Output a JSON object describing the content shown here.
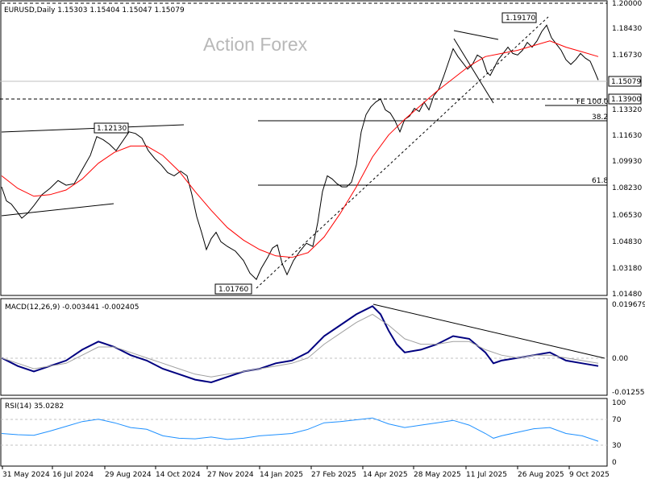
{
  "chart_data": [
    {
      "type": "candlestick",
      "name": "main",
      "header": "EURUSD,Daily  1.15303 1.15404 1.15047 1.15079",
      "watermark": "Action Forex",
      "ylim": [
        1.0,
        2.0
      ],
      "y_ticks": [
        "1.20000",
        "1.18430",
        "1.16730",
        "1.15079",
        "1.13900",
        "1.13320",
        "1.11630",
        "1.09930",
        "1.08230",
        "1.06530",
        "1.04830",
        "1.03180",
        "1.01480"
      ],
      "current_price": "1.15079",
      "level_1390": "1.13900",
      "annotations": {
        "high_label": "1.19170",
        "low_label": "1.01760",
        "mid_high_label": "1.12130"
      },
      "fib_labels": {
        "fe": "FE 100.0",
        "f382": "38.2",
        "f618": "61.8"
      },
      "x_ticks": [
        "31 May 2024",
        "16 Jul 2024",
        "29 Aug 2024",
        "14 Oct 2024",
        "27 Nov 2024",
        "14 Jan 2025",
        "27 Feb 2025",
        "14 Apr 2025",
        "28 May 2025",
        "11 Jul 2025",
        "26 Aug 2025",
        "9 Oct 2025"
      ],
      "price_path": [
        [
          0,
          1.083
        ],
        [
          6,
          1.074
        ],
        [
          12,
          1.072
        ],
        [
          18,
          1.068
        ],
        [
          25,
          1.063
        ],
        [
          32,
          1.066
        ],
        [
          40,
          1.071
        ],
        [
          50,
          1.078
        ],
        [
          60,
          1.082
        ],
        [
          70,
          1.087
        ],
        [
          80,
          1.084
        ],
        [
          90,
          1.085
        ],
        [
          100,
          1.094
        ],
        [
          110,
          1.103
        ],
        [
          118,
          1.115
        ],
        [
          126,
          1.113
        ],
        [
          134,
          1.11
        ],
        [
          142,
          1.106
        ],
        [
          150,
          1.112
        ],
        [
          158,
          1.118
        ],
        [
          166,
          1.117
        ],
        [
          174,
          1.114
        ],
        [
          182,
          1.106
        ],
        [
          190,
          1.101
        ],
        [
          198,
          1.097
        ],
        [
          206,
          1.092
        ],
        [
          214,
          1.09
        ],
        [
          222,
          1.093
        ],
        [
          230,
          1.09
        ],
        [
          236,
          1.078
        ],
        [
          242,
          1.064
        ],
        [
          248,
          1.054
        ],
        [
          254,
          1.043
        ],
        [
          260,
          1.05
        ],
        [
          266,
          1.054
        ],
        [
          272,
          1.048
        ],
        [
          280,
          1.045
        ],
        [
          290,
          1.042
        ],
        [
          300,
          1.036
        ],
        [
          308,
          1.028
        ],
        [
          316,
          1.024
        ],
        [
          322,
          1.031
        ],
        [
          330,
          1.038
        ],
        [
          336,
          1.044
        ],
        [
          342,
          1.046
        ],
        [
          348,
          1.034
        ],
        [
          354,
          1.027
        ],
        [
          362,
          1.036
        ],
        [
          370,
          1.042
        ],
        [
          378,
          1.047
        ],
        [
          386,
          1.045
        ],
        [
          392,
          1.06
        ],
        [
          398,
          1.08
        ],
        [
          404,
          1.09
        ],
        [
          410,
          1.088
        ],
        [
          416,
          1.085
        ],
        [
          422,
          1.083
        ],
        [
          428,
          1.083
        ],
        [
          434,
          1.086
        ],
        [
          440,
          1.097
        ],
        [
          446,
          1.118
        ],
        [
          452,
          1.129
        ],
        [
          458,
          1.134
        ],
        [
          464,
          1.137
        ],
        [
          470,
          1.139
        ],
        [
          476,
          1.132
        ],
        [
          482,
          1.13
        ],
        [
          488,
          1.125
        ],
        [
          494,
          1.118
        ],
        [
          500,
          1.126
        ],
        [
          506,
          1.128
        ],
        [
          512,
          1.133
        ],
        [
          518,
          1.131
        ],
        [
          524,
          1.137
        ],
        [
          530,
          1.132
        ],
        [
          536,
          1.141
        ],
        [
          542,
          1.145
        ],
        [
          548,
          1.153
        ],
        [
          554,
          1.162
        ],
        [
          560,
          1.171
        ],
        [
          566,
          1.166
        ],
        [
          572,
          1.162
        ],
        [
          578,
          1.158
        ],
        [
          584,
          1.161
        ],
        [
          590,
          1.167
        ],
        [
          596,
          1.165
        ],
        [
          602,
          1.156
        ],
        [
          606,
          1.154
        ],
        [
          610,
          1.158
        ],
        [
          616,
          1.164
        ],
        [
          622,
          1.168
        ],
        [
          628,
          1.172
        ],
        [
          634,
          1.168
        ],
        [
          640,
          1.167
        ],
        [
          646,
          1.17
        ],
        [
          652,
          1.175
        ],
        [
          658,
          1.172
        ],
        [
          664,
          1.176
        ],
        [
          670,
          1.182
        ],
        [
          676,
          1.186
        ],
        [
          682,
          1.178
        ],
        [
          688,
          1.174
        ],
        [
          694,
          1.17
        ],
        [
          700,
          1.164
        ],
        [
          706,
          1.161
        ],
        [
          712,
          1.164
        ],
        [
          718,
          1.168
        ],
        [
          724,
          1.165
        ],
        [
          730,
          1.163
        ],
        [
          736,
          1.156
        ],
        [
          740,
          1.151
        ]
      ],
      "ma_path": [
        [
          0,
          1.09
        ],
        [
          20,
          1.082
        ],
        [
          40,
          1.077
        ],
        [
          60,
          1.078
        ],
        [
          80,
          1.081
        ],
        [
          100,
          1.088
        ],
        [
          120,
          1.098
        ],
        [
          140,
          1.105
        ],
        [
          160,
          1.109
        ],
        [
          180,
          1.109
        ],
        [
          200,
          1.103
        ],
        [
          220,
          1.093
        ],
        [
          240,
          1.08
        ],
        [
          260,
          1.068
        ],
        [
          280,
          1.057
        ],
        [
          300,
          1.049
        ],
        [
          320,
          1.043
        ],
        [
          340,
          1.039
        ],
        [
          360,
          1.038
        ],
        [
          380,
          1.041
        ],
        [
          400,
          1.051
        ],
        [
          420,
          1.066
        ],
        [
          440,
          1.083
        ],
        [
          460,
          1.102
        ],
        [
          480,
          1.116
        ],
        [
          500,
          1.126
        ],
        [
          520,
          1.135
        ],
        [
          540,
          1.144
        ],
        [
          560,
          1.152
        ],
        [
          580,
          1.16
        ],
        [
          600,
          1.166
        ],
        [
          620,
          1.168
        ],
        [
          640,
          1.17
        ],
        [
          660,
          1.173
        ],
        [
          680,
          1.176
        ],
        [
          700,
          1.172
        ],
        [
          720,
          1.169
        ],
        [
          740,
          1.166
        ]
      ]
    },
    {
      "type": "line",
      "name": "macd",
      "label": "MACD(12,26,9) -0.003441 -0.002405",
      "y_ticks": [
        "0.019679",
        "0.00",
        "-0.012552"
      ],
      "ylim": [
        -0.0126,
        0.0197
      ],
      "series": [
        {
          "points": [
            [
              0,
              0.0
            ],
            [
              20,
              -0.003
            ],
            [
              40,
              -0.005
            ],
            [
              60,
              -0.003
            ],
            [
              80,
              -0.001
            ],
            [
              100,
              0.003
            ],
            [
              120,
              0.006
            ],
            [
              140,
              0.004
            ],
            [
              160,
              0.001
            ],
            [
              180,
              -0.001
            ],
            [
              200,
              -0.004
            ],
            [
              220,
              -0.006
            ],
            [
              240,
              -0.008
            ],
            [
              260,
              -0.009
            ],
            [
              280,
              -0.007
            ],
            [
              300,
              -0.005
            ],
            [
              320,
              -0.004
            ],
            [
              340,
              -0.002
            ],
            [
              360,
              -0.001
            ],
            [
              380,
              0.002
            ],
            [
              400,
              0.008
            ],
            [
              420,
              0.012
            ],
            [
              440,
              0.016
            ],
            [
              460,
              0.019
            ],
            [
              470,
              0.016
            ],
            [
              480,
              0.01
            ],
            [
              490,
              0.005
            ],
            [
              500,
              0.002
            ],
            [
              520,
              0.003
            ],
            [
              540,
              0.005
            ],
            [
              560,
              0.008
            ],
            [
              580,
              0.007
            ],
            [
              600,
              0.002
            ],
            [
              610,
              -0.002
            ],
            [
              620,
              -0.001
            ],
            [
              640,
              0.0
            ],
            [
              660,
              0.001
            ],
            [
              680,
              0.002
            ],
            [
              700,
              -0.001
            ],
            [
              720,
              -0.002
            ],
            [
              740,
              -0.003
            ]
          ]
        },
        {
          "points": [
            [
              0,
              0.0
            ],
            [
              20,
              -0.002
            ],
            [
              40,
              -0.004
            ],
            [
              60,
              -0.003
            ],
            [
              80,
              -0.002
            ],
            [
              100,
              0.001
            ],
            [
              120,
              0.004
            ],
            [
              140,
              0.004
            ],
            [
              160,
              0.002
            ],
            [
              180,
              0.0
            ],
            [
              200,
              -0.002
            ],
            [
              220,
              -0.004
            ],
            [
              240,
              -0.006
            ],
            [
              260,
              -0.007
            ],
            [
              280,
              -0.006
            ],
            [
              300,
              -0.005
            ],
            [
              320,
              -0.004
            ],
            [
              340,
              -0.003
            ],
            [
              360,
              -0.002
            ],
            [
              380,
              0.0
            ],
            [
              400,
              0.005
            ],
            [
              420,
              0.009
            ],
            [
              440,
              0.013
            ],
            [
              460,
              0.016
            ],
            [
              480,
              0.012
            ],
            [
              500,
              0.007
            ],
            [
              520,
              0.005
            ],
            [
              540,
              0.005
            ],
            [
              560,
              0.006
            ],
            [
              580,
              0.006
            ],
            [
              600,
              0.003
            ],
            [
              620,
              0.001
            ],
            [
              640,
              0.0
            ],
            [
              660,
              0.001
            ],
            [
              680,
              0.001
            ],
            [
              700,
              0.0
            ],
            [
              720,
              -0.001
            ],
            [
              740,
              -0.002
            ]
          ]
        }
      ]
    },
    {
      "type": "line",
      "name": "rsi",
      "label": "RSI(14) 35.0282",
      "y_ticks": [
        "100",
        "70",
        "30",
        "0"
      ],
      "ylim": [
        0,
        100
      ],
      "series": [
        {
          "points": [
            [
              0,
              48
            ],
            [
              20,
              46
            ],
            [
              40,
              45
            ],
            [
              60,
              52
            ],
            [
              80,
              60
            ],
            [
              100,
              68
            ],
            [
              120,
              72
            ],
            [
              140,
              66
            ],
            [
              160,
              58
            ],
            [
              180,
              55
            ],
            [
              200,
              44
            ],
            [
              220,
              40
            ],
            [
              240,
              39
            ],
            [
              260,
              42
            ],
            [
              280,
              38
            ],
            [
              300,
              40
            ],
            [
              320,
              44
            ],
            [
              340,
              46
            ],
            [
              360,
              48
            ],
            [
              380,
              55
            ],
            [
              400,
              66
            ],
            [
              420,
              68
            ],
            [
              440,
              71
            ],
            [
              460,
              74
            ],
            [
              480,
              64
            ],
            [
              500,
              58
            ],
            [
              520,
              62
            ],
            [
              540,
              66
            ],
            [
              560,
              70
            ],
            [
              580,
              62
            ],
            [
              600,
              48
            ],
            [
              610,
              40
            ],
            [
              620,
              44
            ],
            [
              640,
              50
            ],
            [
              660,
              56
            ],
            [
              680,
              58
            ],
            [
              700,
              48
            ],
            [
              720,
              44
            ],
            [
              740,
              35
            ]
          ]
        }
      ]
    }
  ]
}
